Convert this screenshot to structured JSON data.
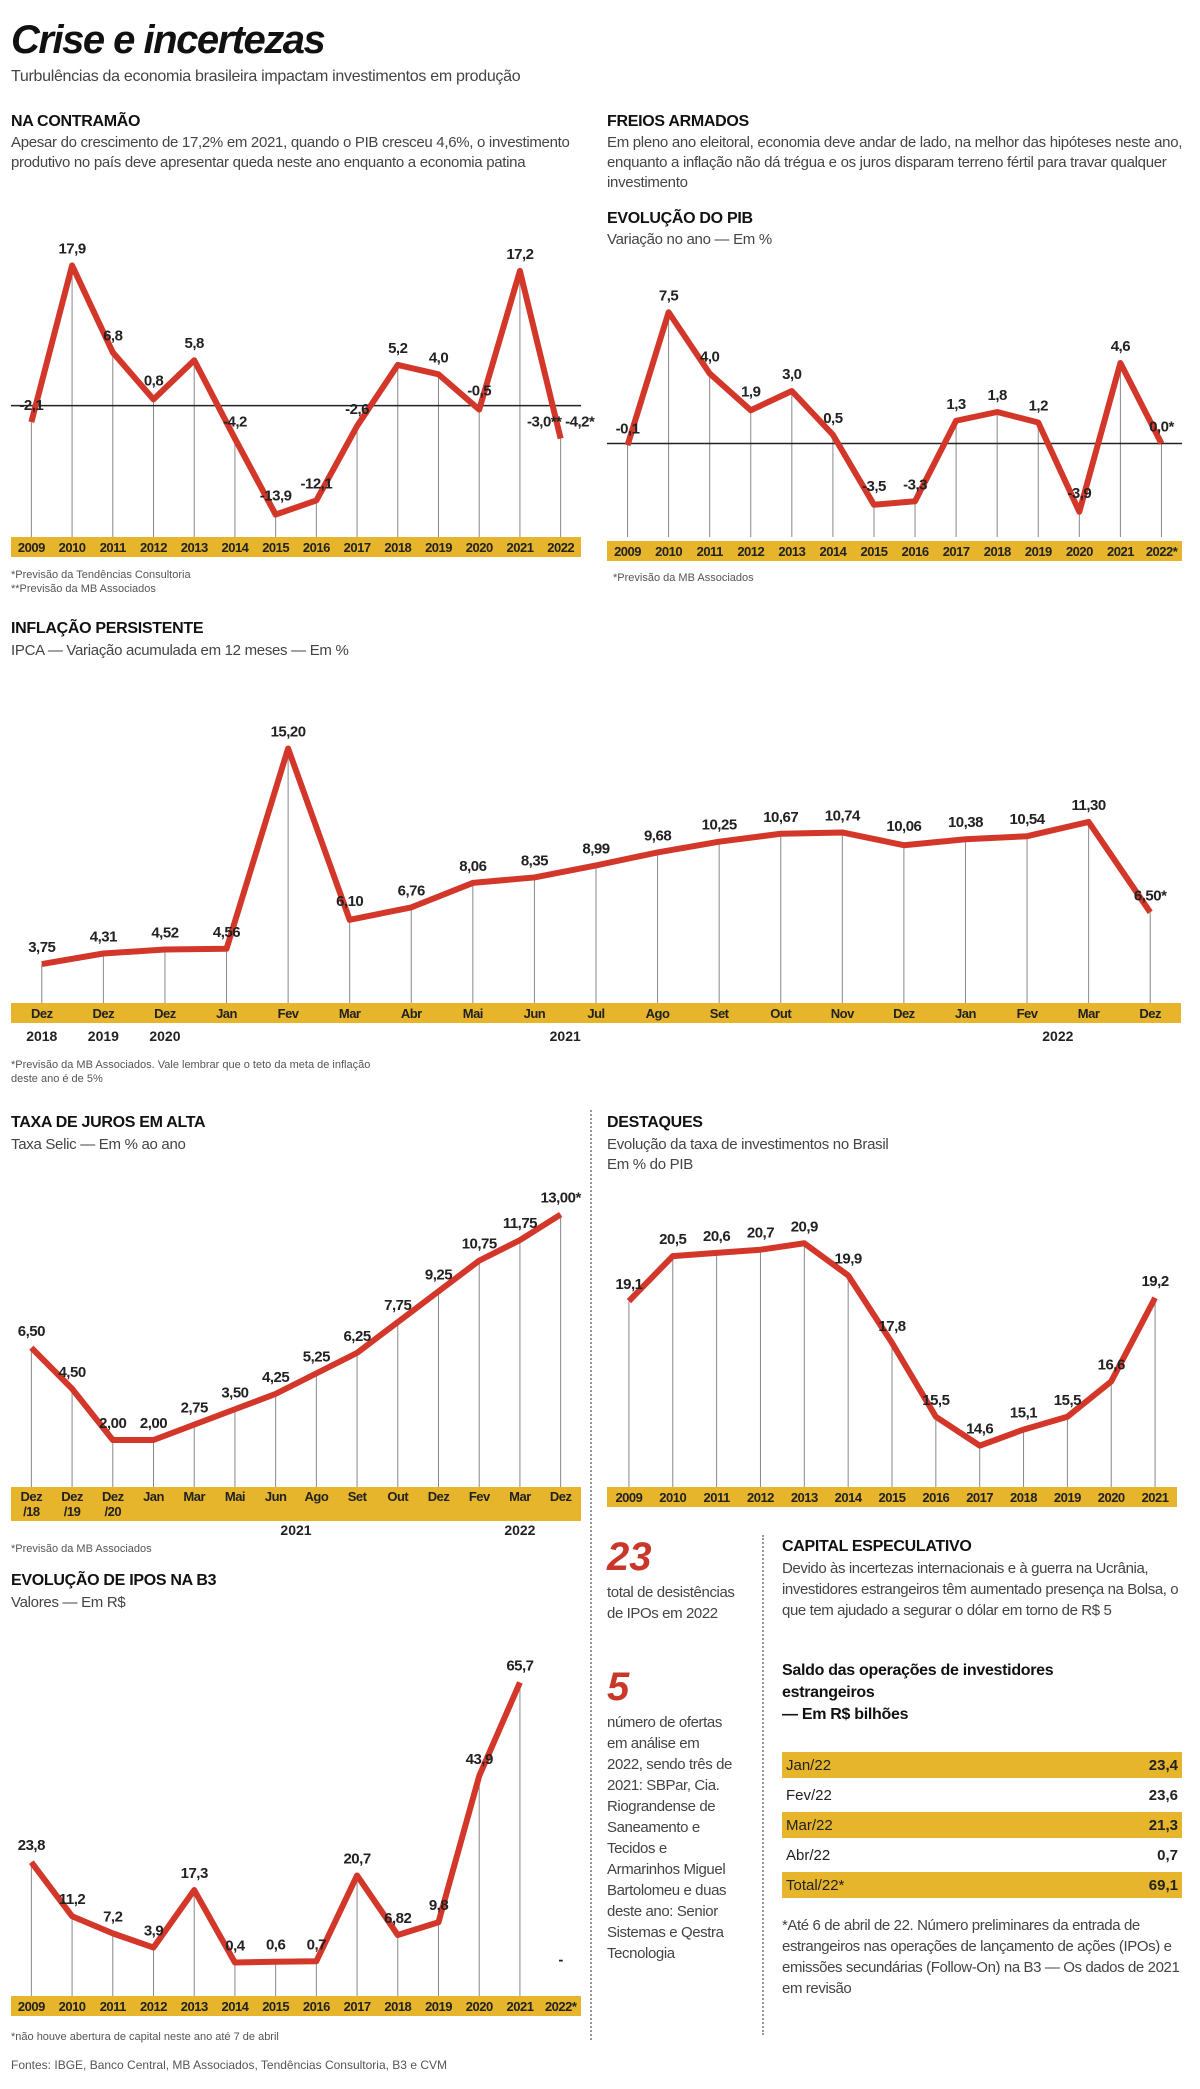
{
  "header": {
    "title": "Crise e incertezas",
    "subtitle": "Turbulências da economia brasileira impactam investimentos em produção"
  },
  "sections": {
    "contramao": {
      "title": "NA CONTRAMÃO",
      "text": "Apesar do crescimento de 17,2% em 2021, quando o PIB cresceu 4,6%, o investimento produtivo no país deve apresentar queda neste ano enquanto a economia patina"
    },
    "freios": {
      "title": "FREIOS ARMADOS",
      "text": "Em pleno ano eleitoral, economia deve andar de lado, na melhor das hipóteses neste ano, enquanto a inflação não dá trégua e os juros disparam terreno fértil para travar qualquer investimento"
    },
    "destaques_side": {
      "n1": "23",
      "t1": "total de desistências de IPOs em 2022",
      "n2": "5",
      "t2": "número de ofertas em análise em 2022, sendo três de 2021: SBPar, Cia. Riograndense de Saneamento e Tecidos e Armarinhos Miguel Bartolomeu e duas deste ano: Senior Sistemas e Qestra Tecnologia"
    },
    "capital": {
      "title": "CAPITAL ESPECULATIVO",
      "text": "Devido às incertezas internacionais e à guerra na Ucrânia, investidores estrangeiros têm aumentado presença na Bolsa, o que tem ajudado a segurar o dólar em torno de R$ 5",
      "table_title": "Saldo das operações de investidores estrangeiros",
      "table_unit": "— Em R$ bilhões",
      "rows": [
        {
          "label": "Jan/22",
          "value": "23,4"
        },
        {
          "label": "Fev/22",
          "value": "23,6"
        },
        {
          "label": "Mar/22",
          "value": "21,3"
        },
        {
          "label": "Abr/22",
          "value": "0,7"
        },
        {
          "label": "Total/22*",
          "value": "69,1"
        }
      ],
      "note": "*Até 6 de abril de 22. Número preliminares da entrada de estrangeiros nas operações de lançamento de ações (IPOs) e emissões secundárias (Follow-On) na B3 — Os dados de 2021 em revisão"
    }
  },
  "sources": "Fontes: IBGE, Banco Central, MB Associados, Tendências Consultoria, B3 e CVM",
  "colors": {
    "line": "#d2372a",
    "band": "#e6b52c"
  },
  "chart_data": [
    {
      "type": "line",
      "title": "",
      "categories": [
        "2009",
        "2010",
        "2011",
        "2012",
        "2013",
        "2014",
        "2015",
        "2016",
        "2017",
        "2018",
        "2019",
        "2020",
        "2021",
        "2022"
      ],
      "values": [
        -2.1,
        17.9,
        6.8,
        0.8,
        5.8,
        -4.2,
        -13.9,
        -12.1,
        -2.6,
        5.2,
        4.0,
        -0.5,
        17.2,
        -4.2
      ],
      "labels": [
        "-2,1",
        "17,9",
        "6,8",
        "0,8",
        "5,8",
        "-4,2",
        "-13,9",
        "-12,1",
        "-2,6",
        "5,2",
        "4,0",
        "-0,5",
        "17,2",
        "-3,0** -4,2*"
      ],
      "zero_line": true,
      "footnotes": [
        "*Previsão da Tendências Consultoria",
        "**Previsão da MB Associados"
      ]
    },
    {
      "type": "line",
      "title": "EVOLUÇÃO DO PIB",
      "subtitle": "Variação no ano — Em %",
      "categories": [
        "2009",
        "2010",
        "2011",
        "2012",
        "2013",
        "2014",
        "2015",
        "2016",
        "2017",
        "2018",
        "2019",
        "2020",
        "2021",
        "2022*"
      ],
      "values": [
        -0.1,
        7.5,
        4.0,
        1.9,
        3.0,
        0.5,
        -3.5,
        -3.3,
        1.3,
        1.8,
        1.2,
        -3.9,
        4.6,
        0.0
      ],
      "labels": [
        "-0,1",
        "7,5",
        "4,0",
        "1,9",
        "3,0",
        "0,5",
        "-3,5",
        "-3,3",
        "1,3",
        "1,8",
        "1,2",
        "-3,9",
        "4,6",
        "0,0*"
      ],
      "zero_line": true,
      "footnotes": [
        "*Previsão da MB Associados"
      ]
    },
    {
      "type": "line",
      "title": "INFLAÇÃO PERSISTENTE",
      "subtitle": "IPCA — Variação acumulada em 12 meses — Em %",
      "categories": [
        "Dez",
        "Dez",
        "Dez",
        "Jan",
        "Fev",
        "Mar",
        "Abr",
        "Mai",
        "Jun",
        "Jul",
        "Ago",
        "Set",
        "Out",
        "Nov",
        "Dez",
        "Jan",
        "Fev",
        "Mar",
        "Dez"
      ],
      "year_groups": [
        "2018",
        "2019",
        "2020",
        "2021",
        "2022"
      ],
      "values": [
        3.75,
        4.31,
        4.52,
        4.56,
        15.2,
        6.1,
        6.76,
        8.06,
        8.35,
        8.99,
        9.68,
        10.25,
        10.67,
        10.74,
        10.06,
        10.38,
        10.54,
        11.3,
        6.5
      ],
      "labels": [
        "3,75",
        "4,31",
        "4,52",
        "4,56",
        "15,20",
        "6,10",
        "6,76",
        "8,06",
        "8,35",
        "8,99",
        "9,68",
        "10,25",
        "10,67",
        "10,74",
        "10,06",
        "10,38",
        "10,54",
        "11,30",
        "6,50*"
      ],
      "footnotes": [
        "*Previsão da MB Associados. Vale lembrar que o teto da meta de inflação deste ano é de 5%"
      ]
    },
    {
      "type": "line",
      "title": "TAXA DE JUROS EM ALTA",
      "subtitle": "Taxa Selic — Em % ao ano",
      "categories": [
        "Dez /18",
        "Dez /19",
        "Dez /20",
        "Jan",
        "Mar",
        "Mai",
        "Jun",
        "Ago",
        "Set",
        "Out",
        "Dez",
        "Fev",
        "Mar",
        "Dez"
      ],
      "year_groups": [
        "2021",
        "2022"
      ],
      "values": [
        6.5,
        4.5,
        2.0,
        2.0,
        2.75,
        3.5,
        4.25,
        5.25,
        6.25,
        7.75,
        9.25,
        10.75,
        11.75,
        13.0
      ],
      "labels": [
        "6,50",
        "4,50",
        "2,00",
        "2,00",
        "2,75",
        "3,50",
        "4,25",
        "5,25",
        "6,25",
        "7,75",
        "9,25",
        "10,75",
        "11,75",
        "13,00*"
      ],
      "footnotes": [
        "*Previsão da MB Associados"
      ]
    },
    {
      "type": "line",
      "title": "DESTAQUES",
      "subtitle": "Evolução da taxa de investimentos no Brasil",
      "subtitle2": "Em % do PIB",
      "categories": [
        "2009",
        "2010",
        "2011",
        "2012",
        "2013",
        "2014",
        "2015",
        "2016",
        "2017",
        "2018",
        "2019",
        "2020",
        "2021"
      ],
      "values": [
        19.1,
        20.5,
        20.6,
        20.7,
        20.9,
        19.9,
        17.8,
        15.5,
        14.6,
        15.1,
        15.5,
        16.6,
        19.2
      ],
      "labels": [
        "19,1",
        "20,5",
        "20,6",
        "20,7",
        "20,9",
        "19,9",
        "17,8",
        "15,5",
        "14,6",
        "15,1",
        "15,5",
        "16,6",
        "19,2"
      ]
    },
    {
      "type": "line",
      "title": "EVOLUÇÃO DE IPOS NA B3",
      "subtitle": "Valores — Em R$",
      "categories": [
        "2009",
        "2010",
        "2011",
        "2012",
        "2013",
        "2014",
        "2015",
        "2016",
        "2017",
        "2018",
        "2019",
        "2020",
        "2021",
        "2022*"
      ],
      "values": [
        23.8,
        11.2,
        7.2,
        3.9,
        17.3,
        0.4,
        0.6,
        0.7,
        20.7,
        6.82,
        9.8,
        43.9,
        65.7,
        null
      ],
      "labels": [
        "23,8",
        "11,2",
        "7,2",
        "3,9",
        "17,3",
        "0,4",
        "0,6",
        "0,7",
        "20,7",
        "6,82",
        "9,8",
        "43,9",
        "65,7",
        "-"
      ],
      "footnotes": [
        "*não houve abertura de capital neste ano até 7 de abril"
      ]
    }
  ]
}
